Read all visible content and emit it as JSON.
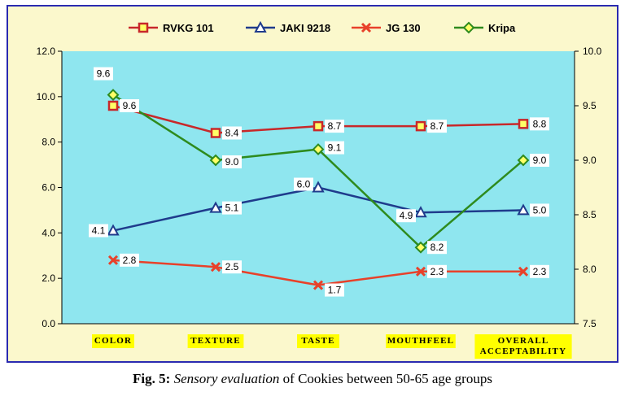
{
  "caption": {
    "fig_label": "Fig. 5:",
    "emphasis": "Sensory evaluation",
    "rest": " of Cookies between 50-65 age groups"
  },
  "chart_data": {
    "type": "line",
    "categories": [
      "COLOR",
      "TEXTURE",
      "TASTE",
      "MOUTHFEEL",
      "OVERALL ACCEPTABILITY"
    ],
    "category_lines": [
      [
        "COLOR"
      ],
      [
        "TEXTURE"
      ],
      [
        "TASTE"
      ],
      [
        "MOUTHFEEL"
      ],
      [
        "OVERALL",
        "ACCEPTABILITY"
      ]
    ],
    "y_left": {
      "ylim": [
        0,
        12
      ],
      "ticks": [
        "0.0",
        "2.0",
        "4.0",
        "6.0",
        "8.0",
        "10.0",
        "12.0"
      ]
    },
    "y_right": {
      "ylim": [
        7.5,
        10
      ],
      "ticks": [
        "7.5",
        "8.0",
        "8.5",
        "9.0",
        "9.5",
        "10.0"
      ]
    },
    "grid": false,
    "legend_position": "top",
    "series": [
      {
        "name": "RVKG 101",
        "axis": "left",
        "color": "#c8282a",
        "marker": "square",
        "values": [
          9.6,
          8.4,
          8.7,
          8.7,
          8.8
        ],
        "labels": [
          "9.6",
          "8.4",
          "8.7",
          "8.7",
          "8.8"
        ]
      },
      {
        "name": "JAKI 9218",
        "axis": "left",
        "color": "#1f3b8c",
        "marker": "triangle",
        "values": [
          4.1,
          5.1,
          6.0,
          4.9,
          5.0
        ],
        "labels": [
          "4.1",
          "5.1",
          "6.0",
          "4.9",
          "5.0"
        ]
      },
      {
        "name": "JG 130",
        "axis": "left",
        "color": "#e8412a",
        "marker": "x",
        "values": [
          2.8,
          2.5,
          1.7,
          2.3,
          2.3
        ],
        "labels": [
          "2.8",
          "2.5",
          "1.7",
          "2.3",
          "2.3"
        ]
      },
      {
        "name": "Kripa",
        "axis": "right",
        "color": "#2e8b1e",
        "marker": "diamond",
        "values": [
          9.6,
          9.0,
          9.1,
          8.2,
          9.0
        ],
        "labels": [
          "9.6",
          "9.0",
          "9.1",
          "8.2",
          "9.0"
        ]
      }
    ]
  }
}
